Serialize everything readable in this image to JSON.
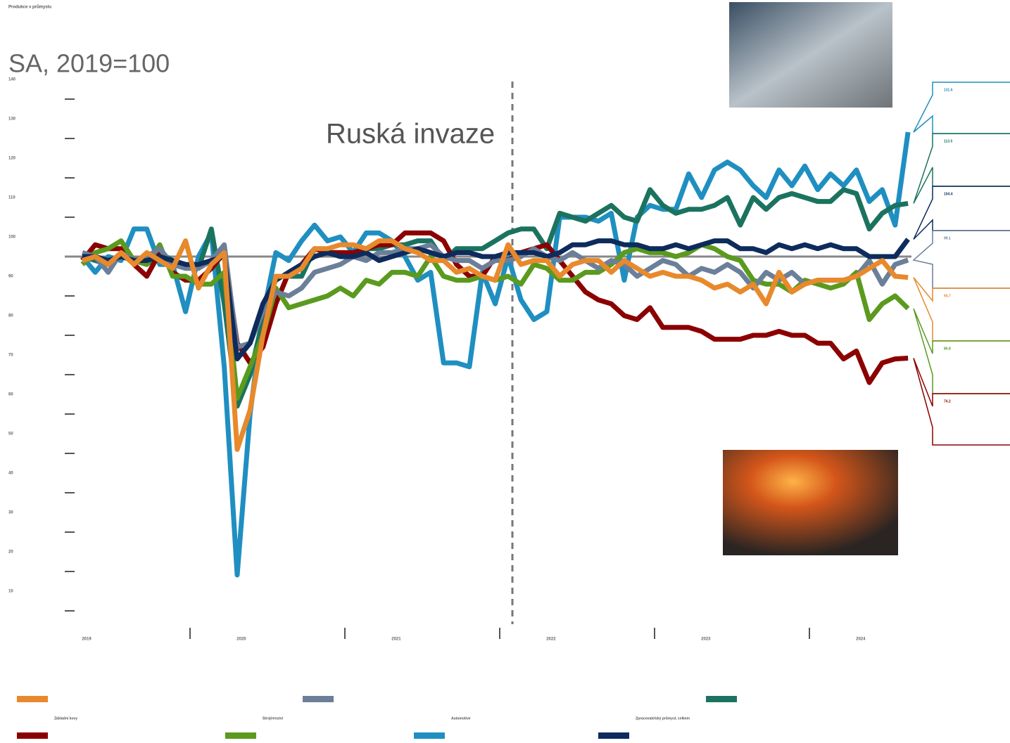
{
  "chart_data": {
    "type": "line",
    "title": "Produkce v průmyslu",
    "subtitle": "SA, 2019=100",
    "annotation": "Ruská invaze",
    "categories": [
      "2019",
      null,
      null,
      null,
      null,
      null,
      null,
      null,
      null,
      null,
      null,
      null,
      "2020",
      null,
      null,
      null,
      null,
      null,
      null,
      null,
      null,
      null,
      null,
      null,
      "2021",
      null,
      null,
      null,
      null,
      null,
      null,
      null,
      null,
      null,
      null,
      null,
      "2022",
      null,
      null,
      null,
      null,
      null,
      null,
      null,
      null,
      null,
      null,
      null,
      "2023",
      null,
      null,
      null,
      null,
      null,
      null,
      null,
      null,
      null,
      null,
      null,
      "2024",
      null,
      null,
      null,
      null
    ],
    "ylim": [
      10,
      140
    ],
    "yticks": [
      10,
      20,
      30,
      40,
      50,
      60,
      70,
      80,
      90,
      100,
      110,
      120,
      130,
      140
    ],
    "reference_line": 100,
    "series": [
      {
        "color": "#e8892b",
        "values": [
          99,
          100,
          98,
          101,
          98,
          101,
          99,
          97,
          104,
          92,
          98,
          101,
          51,
          61,
          80,
          95,
          95,
          97,
          102,
          102,
          103,
          103,
          102,
          104,
          104,
          102,
          101,
          99,
          99,
          96,
          97,
          95,
          94,
          103,
          98,
          99,
          99,
          95,
          98,
          99,
          99,
          96,
          99,
          97,
          95,
          96,
          95,
          95,
          94,
          92,
          93,
          91,
          93,
          88,
          96,
          91,
          93,
          94,
          94,
          94,
          95,
          97,
          99,
          95,
          94.7
        ]
      },
      {
        "color": "#6b7f99",
        "values": [
          101,
          100,
          96,
          101,
          99,
          100,
          102,
          98,
          97,
          97,
          99,
          103,
          77,
          78,
          86,
          91,
          90,
          92,
          96,
          97,
          98,
          100,
          99,
          101,
          101,
          102,
          102,
          103,
          100,
          99,
          99,
          97,
          99,
          99,
          100,
          102,
          100,
          99,
          101,
          99,
          97,
          99,
          98,
          95,
          97,
          99,
          98,
          95,
          97,
          96,
          98,
          96,
          92,
          96,
          94,
          96,
          93,
          94,
          94,
          94,
          95,
          99,
          93,
          98,
          99.1
        ]
      },
      {
        "color": "#1b735f",
        "values": [
          100,
          99,
          98,
          101,
          99,
          98,
          101,
          99,
          98,
          97,
          107,
          88,
          62,
          70,
          84,
          95,
          95,
          95,
          102,
          101,
          101,
          100,
          102,
          102,
          103,
          103,
          104,
          104,
          99,
          102,
          102,
          102,
          104,
          106,
          107,
          107,
          102,
          111,
          110,
          109,
          111,
          113,
          110,
          109,
          117,
          113,
          111,
          112,
          112,
          113,
          115,
          108,
          115,
          112,
          115,
          116,
          115,
          114,
          114,
          117,
          116,
          107,
          111,
          113,
          113.5
        ]
      },
      {
        "name": "Základní kovy",
        "color": "#8b0000",
        "values": [
          99,
          103,
          102,
          102,
          98,
          95,
          101,
          96,
          94,
          94,
          97,
          101,
          78,
          73,
          77,
          88,
          96,
          98,
          102,
          101,
          101,
          101,
          102,
          103,
          103,
          106,
          106,
          106,
          104,
          98,
          95,
          95,
          100,
          99,
          101,
          102,
          103,
          99,
          95,
          91,
          89,
          88,
          85,
          84,
          87,
          82,
          82,
          82,
          81,
          79,
          79,
          79,
          80,
          80,
          81,
          80,
          80,
          78,
          78,
          74,
          76,
          68,
          73,
          74,
          74.2
        ]
      },
      {
        "name": "Strojírenství",
        "color": "#5a9a1e",
        "values": [
          98,
          101,
          102,
          104,
          99,
          98,
          103,
          95,
          95,
          93,
          93,
          96,
          64,
          72,
          80,
          92,
          87,
          88,
          89,
          90,
          92,
          90,
          94,
          93,
          96,
          96,
          95,
          100,
          95,
          94,
          94,
          95,
          94,
          95,
          93,
          98,
          97,
          94,
          94,
          96,
          96,
          98,
          101,
          102,
          101,
          101,
          100,
          101,
          103,
          102,
          100,
          99,
          94,
          93,
          93,
          91,
          94,
          93,
          92,
          93,
          96,
          84,
          88,
          90,
          86.8
        ]
      },
      {
        "name": "Automotive",
        "color": "#1f8fc1",
        "values": [
          100,
          96,
          100,
          99,
          107,
          107,
          98,
          98,
          86,
          100,
          106,
          72,
          19.1,
          60,
          85,
          101,
          99,
          104,
          108,
          104,
          105,
          101,
          106,
          106,
          104,
          100,
          94,
          96,
          73,
          73,
          72,
          96,
          88,
          100,
          89,
          84,
          86,
          110,
          110,
          110,
          109,
          111,
          94,
          110,
          113,
          112,
          112,
          121,
          115,
          122,
          124,
          122,
          118,
          115,
          122,
          118,
          123,
          117,
          121,
          118,
          122,
          114,
          117,
          108,
          131.6
        ]
      },
      {
        "name": "Zpracovatelský průmysl, celkem",
        "color": "#0d2b5c",
        "values": [
          100,
          100,
          99,
          100,
          99,
          99,
          100,
          99,
          98,
          98,
          99,
          100,
          74,
          78,
          88,
          94,
          96,
          98,
          100,
          101,
          100,
          100,
          101,
          99,
          100,
          101,
          102,
          101,
          100,
          101,
          101,
          100,
          100,
          101,
          101,
          101,
          100,
          101,
          103,
          103,
          104,
          104,
          103,
          103,
          102,
          102,
          103,
          102,
          103,
          104,
          104,
          102,
          102,
          101,
          103,
          102,
          103,
          102,
          103,
          102,
          102,
          100,
          100,
          100,
          104.4
        ]
      }
    ]
  }
}
